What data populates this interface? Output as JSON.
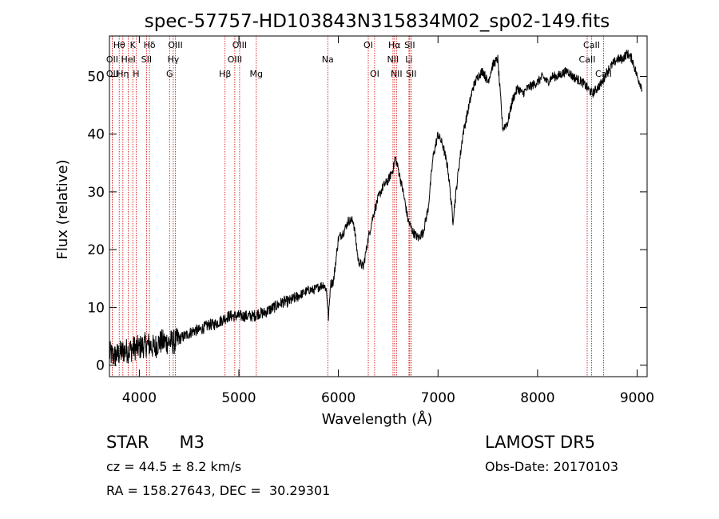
{
  "chart_data": {
    "type": "line",
    "title": "spec-57757-HD103843N315834M02_sp02-149.fits",
    "xlabel": "Wavelength (Å)",
    "ylabel": "Flux (relative)",
    "xlim": [
      3700,
      9100
    ],
    "ylim": [
      -2,
      57
    ],
    "x_ticks": [
      4000,
      5000,
      6000,
      7000,
      8000,
      9000
    ],
    "y_ticks": [
      0,
      10,
      20,
      30,
      40,
      50
    ],
    "grid": false,
    "series": [
      {
        "x": [
          3700,
          3750,
          3800,
          3850,
          3900,
          3950,
          4000,
          4050,
          4100,
          4150,
          4200,
          4250,
          4300,
          4350,
          4400,
          4450,
          4500,
          4550,
          4600,
          4650,
          4700,
          4750,
          4800,
          4850,
          4900,
          4950,
          5000,
          5050,
          5100,
          5150,
          5200,
          5250,
          5300,
          5350,
          5400,
          5450,
          5500,
          5550,
          5600,
          5650,
          5700,
          5750,
          5800,
          5850,
          5880,
          5900,
          5920,
          5950,
          6000,
          6050,
          6100,
          6150,
          6200,
          6250,
          6300,
          6350,
          6400,
          6450,
          6500,
          6550,
          6570,
          6600,
          6650,
          6700,
          6750,
          6800,
          6850,
          6900,
          6950,
          7000,
          7050,
          7100,
          7150,
          7200,
          7250,
          7300,
          7350,
          7400,
          7450,
          7500,
          7550,
          7600,
          7650,
          7700,
          7750,
          7800,
          7850,
          7900,
          7950,
          8000,
          8050,
          8100,
          8150,
          8200,
          8250,
          8300,
          8350,
          8400,
          8450,
          8500,
          8550,
          8600,
          8650,
          8700,
          8750,
          8800,
          8850,
          8900,
          8950,
          9000,
          9050
        ],
        "y": [
          2,
          1.5,
          2,
          2.5,
          2.5,
          3,
          3,
          3.5,
          3.5,
          3,
          4,
          4,
          4,
          4,
          4.5,
          5,
          5.5,
          6,
          6,
          6.5,
          7,
          7,
          7.5,
          8,
          8.5,
          8.5,
          8.5,
          8.5,
          8.5,
          8.5,
          9,
          9,
          9.5,
          10,
          10.5,
          11,
          11,
          11.5,
          12,
          12.5,
          13,
          13,
          13.5,
          14,
          13,
          8,
          14,
          14.5,
          22,
          23,
          25,
          25,
          18,
          17,
          22,
          26,
          29,
          31,
          32,
          34,
          36,
          34,
          30,
          25,
          23,
          22,
          23,
          27,
          36,
          40,
          38,
          34,
          25,
          33,
          40,
          44,
          48,
          50,
          51,
          49,
          52,
          53,
          41,
          42,
          46,
          48,
          47,
          48,
          48.5,
          49,
          50,
          49,
          50,
          50,
          50.5,
          51,
          50,
          49.5,
          49,
          48,
          47,
          48,
          49,
          51,
          52,
          53,
          53,
          54,
          53,
          50,
          48
        ]
      }
    ],
    "line_labels": [
      {
        "name": "Hθ",
        "x": 3798,
        "row": 0
      },
      {
        "name": "OII",
        "x": 3727,
        "row": 1
      },
      {
        "name": "OII",
        "x": 3727,
        "row": 2
      },
      {
        "name": "K",
        "x": 3934,
        "row": 0
      },
      {
        "name": "HeI",
        "x": 3889,
        "row": 1
      },
      {
        "name": "Hη",
        "x": 3835,
        "row": 2
      },
      {
        "name": "H",
        "x": 3968,
        "row": 2
      },
      {
        "name": "Hδ",
        "x": 4102,
        "row": 0
      },
      {
        "name": "SII",
        "x": 4072,
        "row": 1
      },
      {
        "name": "OIII",
        "x": 4363,
        "row": 0
      },
      {
        "name": "Hγ",
        "x": 4341,
        "row": 1
      },
      {
        "name": "G",
        "x": 4304,
        "row": 2
      },
      {
        "name": "OIII",
        "x": 5007,
        "row": 0
      },
      {
        "name": "OIII",
        "x": 4959,
        "row": 1
      },
      {
        "name": "Hβ",
        "x": 4861,
        "row": 2
      },
      {
        "name": "Mg",
        "x": 5175,
        "row": 2
      },
      {
        "name": "Na",
        "x": 5893,
        "row": 1
      },
      {
        "name": "OI",
        "x": 6300,
        "row": 0
      },
      {
        "name": "OI",
        "x": 6363,
        "row": 2
      },
      {
        "name": "Hα",
        "x": 6563,
        "row": 0
      },
      {
        "name": "SII",
        "x": 6716,
        "row": 0
      },
      {
        "name": "NII",
        "x": 6548,
        "row": 1
      },
      {
        "name": "Li",
        "x": 6708,
        "row": 1
      },
      {
        "name": "NII",
        "x": 6583,
        "row": 2
      },
      {
        "name": "SII",
        "x": 6731,
        "row": 2
      },
      {
        "name": "CaII",
        "x": 8542,
        "row": 0
      },
      {
        "name": "CaII",
        "x": 8498,
        "row": 1
      },
      {
        "name": "CaII",
        "x": 8662,
        "row": 2
      }
    ],
    "line_marker_color": "#cc0000"
  },
  "info": {
    "class_label": "STAR",
    "subclass": "M3",
    "survey": "LAMOST DR5",
    "cz": "cz = 44.5 ± 8.2 km/s",
    "obs_date": "Obs-Date: 20170103",
    "coords": "RA = 158.27643, DEC =  30.29301"
  }
}
